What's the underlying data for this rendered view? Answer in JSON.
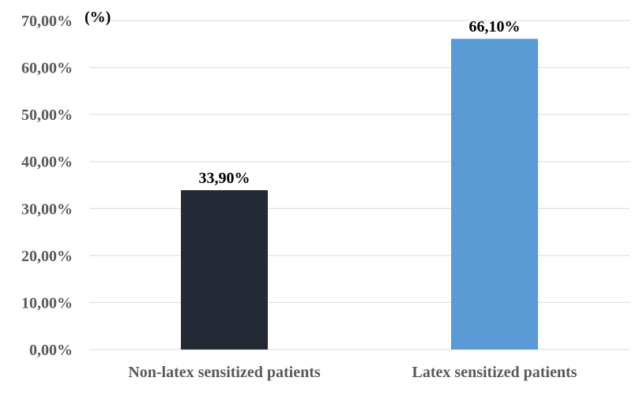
{
  "chart_data": {
    "type": "bar",
    "categories": [
      "Non-latex sensitized patients",
      "Latex sensitized patients"
    ],
    "values": [
      33.9,
      66.1
    ],
    "data_labels": [
      "33,90%",
      "66,10%"
    ],
    "unit_label": "(%)",
    "ylim": [
      0,
      70
    ],
    "yticks": [
      0,
      10,
      20,
      30,
      40,
      50,
      60,
      70
    ],
    "ytick_labels": [
      "0,00%",
      "10,00%",
      "20,00%",
      "30,00%",
      "40,00%",
      "50,00%",
      "60,00%",
      "70,00%"
    ],
    "colors": [
      "#232a35",
      "#5b9bd5"
    ],
    "grid": true,
    "legend": false,
    "title": "",
    "xlabel": "",
    "ylabel": ""
  }
}
